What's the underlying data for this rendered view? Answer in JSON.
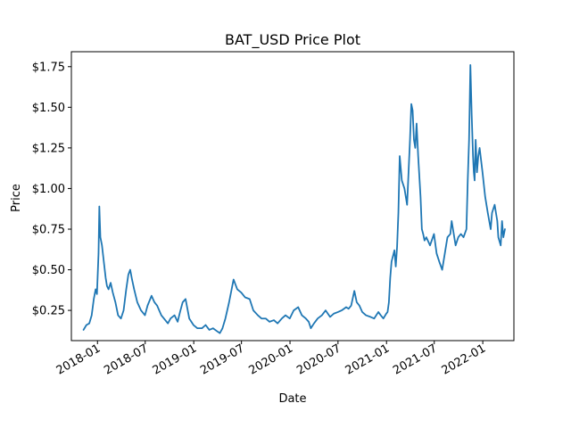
{
  "chart_data": {
    "type": "line",
    "title": "BAT_USD Price Plot",
    "xlabel": "Date",
    "ylabel": "Price",
    "xlim": [
      "2017-09-24",
      "2022-04-29"
    ],
    "ylim": [
      0.064,
      1.842
    ],
    "x_ticks": [
      {
        "date": "2018-01-01",
        "label": "2018-01"
      },
      {
        "date": "2018-07-01",
        "label": "2018-07"
      },
      {
        "date": "2019-01-01",
        "label": "2019-01"
      },
      {
        "date": "2019-07-01",
        "label": "2019-07"
      },
      {
        "date": "2020-01-01",
        "label": "2020-01"
      },
      {
        "date": "2020-07-01",
        "label": "2020-07"
      },
      {
        "date": "2021-01-01",
        "label": "2021-01"
      },
      {
        "date": "2021-07-01",
        "label": "2021-07"
      },
      {
        "date": "2022-01-01",
        "label": "2022-01"
      }
    ],
    "y_ticks": [
      {
        "value": 0.25,
        "label": "$0.25"
      },
      {
        "value": 0.5,
        "label": "$0.50"
      },
      {
        "value": 0.75,
        "label": "$0.75"
      },
      {
        "value": 1.0,
        "label": "$1.00"
      },
      {
        "value": 1.25,
        "label": "$1.25"
      },
      {
        "value": 1.5,
        "label": "$1.50"
      },
      {
        "value": 1.75,
        "label": "$1.75"
      }
    ],
    "grid": false,
    "line_color": "#1f77b4",
    "series": [
      {
        "x": [
          "2017-11-09",
          "2017-11-20",
          "2017-12-01",
          "2017-12-10",
          "2017-12-18",
          "2017-12-25",
          "2017-12-30",
          "2018-01-05",
          "2018-01-08",
          "2018-01-12",
          "2018-01-18",
          "2018-01-25",
          "2018-02-01",
          "2018-02-06",
          "2018-02-12",
          "2018-02-20",
          "2018-02-28",
          "2018-03-10",
          "2018-03-20",
          "2018-03-31",
          "2018-04-10",
          "2018-04-20",
          "2018-04-28",
          "2018-05-05",
          "2018-05-12",
          "2018-05-20",
          "2018-06-01",
          "2018-06-15",
          "2018-06-30",
          "2018-07-10",
          "2018-07-25",
          "2018-08-05",
          "2018-08-15",
          "2018-08-31",
          "2018-09-10",
          "2018-09-25",
          "2018-10-05",
          "2018-10-20",
          "2018-11-01",
          "2018-11-10",
          "2018-11-20",
          "2018-12-01",
          "2018-12-15",
          "2018-12-31",
          "2019-01-15",
          "2019-02-01",
          "2019-02-15",
          "2019-03-01",
          "2019-03-15",
          "2019-04-01",
          "2019-04-10",
          "2019-04-20",
          "2019-05-01",
          "2019-05-15",
          "2019-06-01",
          "2019-06-15",
          "2019-06-30",
          "2019-07-15",
          "2019-08-01",
          "2019-08-15",
          "2019-09-01",
          "2019-09-15",
          "2019-10-01",
          "2019-10-15",
          "2019-11-01",
          "2019-11-15",
          "2019-12-01",
          "2019-12-15",
          "2019-12-31",
          "2020-01-15",
          "2020-02-01",
          "2020-02-15",
          "2020-03-01",
          "2020-03-12",
          "2020-03-20",
          "2020-04-01",
          "2020-04-15",
          "2020-05-01",
          "2020-05-15",
          "2020-06-01",
          "2020-06-15",
          "2020-07-01",
          "2020-07-15",
          "2020-08-01",
          "2020-08-10",
          "2020-08-20",
          "2020-09-01",
          "2020-09-10",
          "2020-09-20",
          "2020-10-01",
          "2020-10-15",
          "2020-11-01",
          "2020-11-15",
          "2020-12-01",
          "2020-12-10",
          "2020-12-20",
          "2020-12-31",
          "2021-01-05",
          "2021-01-10",
          "2021-01-15",
          "2021-01-20",
          "2021-01-31",
          "2021-02-05",
          "2021-02-10",
          "2021-02-15",
          "2021-02-20",
          "2021-02-28",
          "2021-03-10",
          "2021-03-20",
          "2021-03-31",
          "2021-04-05",
          "2021-04-10",
          "2021-04-15",
          "2021-04-20",
          "2021-04-25",
          "2021-05-01",
          "2021-05-10",
          "2021-05-15",
          "2021-05-20",
          "2021-05-25",
          "2021-06-01",
          "2021-06-15",
          "2021-06-30",
          "2021-07-10",
          "2021-07-20",
          "2021-07-31",
          "2021-08-10",
          "2021-08-20",
          "2021-08-31",
          "2021-09-05",
          "2021-09-10",
          "2021-09-20",
          "2021-09-30",
          "2021-10-10",
          "2021-10-20",
          "2021-10-31",
          "2021-11-05",
          "2021-11-10",
          "2021-11-15",
          "2021-11-20",
          "2021-11-25",
          "2021-11-28",
          "2021-12-01",
          "2021-12-05",
          "2021-12-10",
          "2021-12-15",
          "2021-12-20",
          "2021-12-31",
          "2022-01-10",
          "2022-01-20",
          "2022-01-31",
          "2022-02-05",
          "2022-02-15",
          "2022-02-25",
          "2022-03-01",
          "2022-03-10",
          "2022-03-15",
          "2022-03-20",
          "2022-03-26"
        ],
        "y": [
          0.13,
          0.16,
          0.17,
          0.22,
          0.32,
          0.38,
          0.35,
          0.6,
          0.89,
          0.7,
          0.65,
          0.55,
          0.45,
          0.4,
          0.38,
          0.42,
          0.36,
          0.3,
          0.22,
          0.2,
          0.25,
          0.38,
          0.47,
          0.5,
          0.44,
          0.38,
          0.3,
          0.25,
          0.22,
          0.28,
          0.34,
          0.3,
          0.28,
          0.22,
          0.2,
          0.17,
          0.2,
          0.22,
          0.18,
          0.24,
          0.3,
          0.32,
          0.2,
          0.16,
          0.14,
          0.14,
          0.16,
          0.13,
          0.14,
          0.12,
          0.11,
          0.14,
          0.2,
          0.3,
          0.44,
          0.38,
          0.36,
          0.33,
          0.32,
          0.25,
          0.22,
          0.2,
          0.2,
          0.18,
          0.19,
          0.17,
          0.2,
          0.22,
          0.2,
          0.25,
          0.27,
          0.22,
          0.2,
          0.18,
          0.14,
          0.17,
          0.2,
          0.22,
          0.25,
          0.21,
          0.23,
          0.24,
          0.25,
          0.27,
          0.26,
          0.28,
          0.37,
          0.3,
          0.28,
          0.24,
          0.22,
          0.21,
          0.2,
          0.24,
          0.22,
          0.2,
          0.23,
          0.24,
          0.3,
          0.45,
          0.55,
          0.62,
          0.52,
          0.64,
          0.85,
          1.2,
          1.05,
          1.0,
          0.9,
          1.3,
          1.52,
          1.48,
          1.3,
          1.25,
          1.4,
          1.2,
          0.95,
          0.75,
          0.72,
          0.68,
          0.7,
          0.65,
          0.72,
          0.6,
          0.55,
          0.5,
          0.6,
          0.7,
          0.72,
          0.8,
          0.75,
          0.65,
          0.7,
          0.72,
          0.7,
          0.75,
          1.05,
          1.3,
          1.76,
          1.45,
          1.2,
          1.1,
          1.05,
          1.3,
          1.1,
          1.2,
          1.25,
          1.1,
          0.95,
          0.85,
          0.75,
          0.85,
          0.9,
          0.8,
          0.7,
          0.65,
          0.8,
          0.7,
          0.75
        ]
      }
    ]
  }
}
